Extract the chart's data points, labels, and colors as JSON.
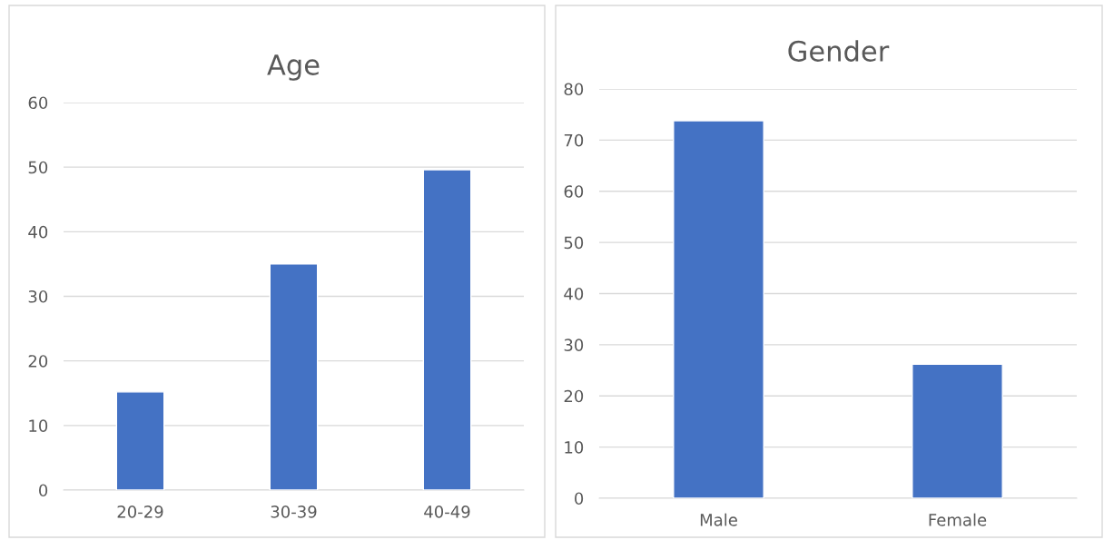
{
  "chart_data": [
    {
      "type": "bar",
      "title": "Age",
      "categories": [
        "20-29",
        "30-39",
        "40-49"
      ],
      "values": [
        15.2,
        35.0,
        49.6
      ],
      "color": "#4472c4",
      "ylim": [
        0,
        60
      ],
      "yticks": [
        0,
        10,
        20,
        30,
        40,
        50,
        60
      ],
      "grid": "y",
      "legend": false
    },
    {
      "type": "bar",
      "title": "Gender",
      "categories": [
        "Male",
        "Female"
      ],
      "values": [
        73.8,
        26.2
      ],
      "color": "#4472c4",
      "ylim": [
        0,
        80
      ],
      "yticks": [
        0,
        10,
        20,
        30,
        40,
        50,
        60,
        70,
        80
      ],
      "grid": "y",
      "legend": false
    }
  ]
}
